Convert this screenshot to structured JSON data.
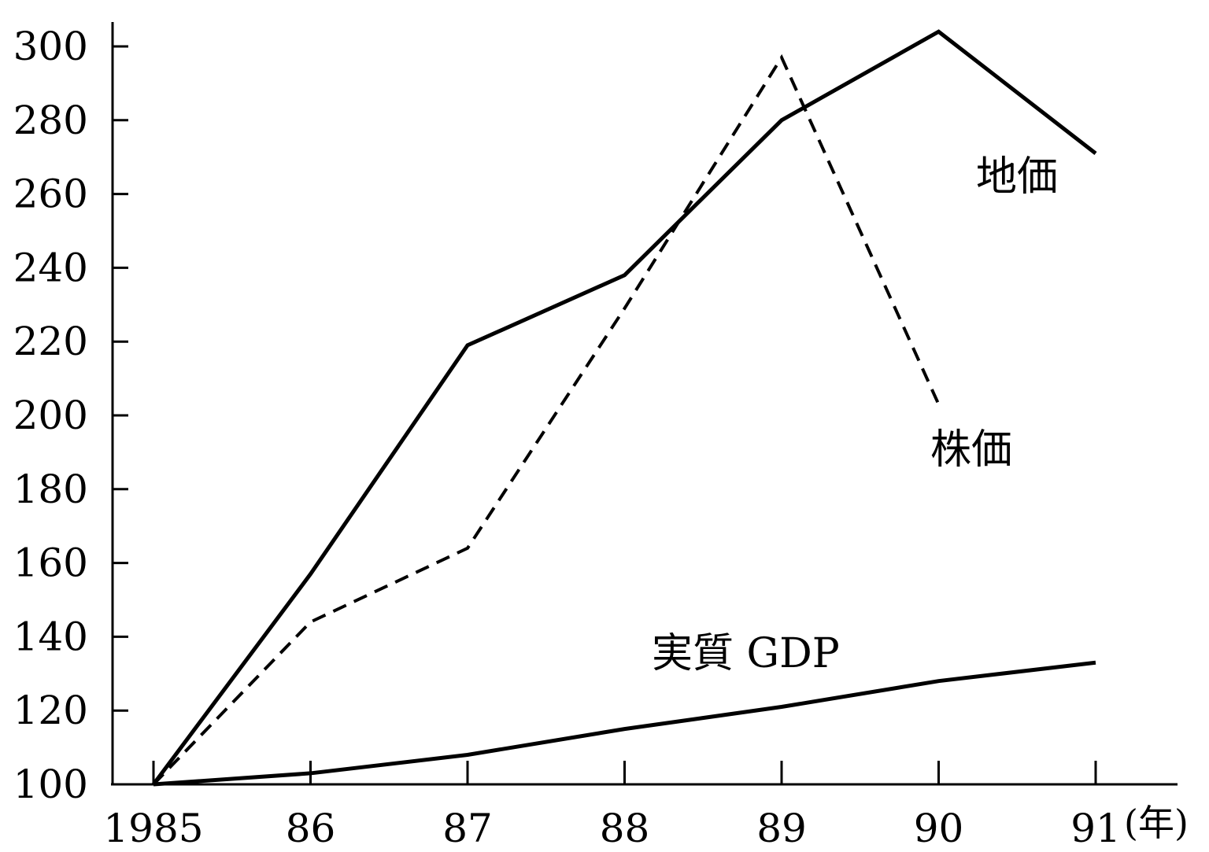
{
  "chart_data": {
    "type": "line",
    "title": "",
    "xlabel": "",
    "ylabel": "",
    "x_unit": "(年)",
    "x": [
      1985,
      1986,
      1987,
      1988,
      1989,
      1990,
      1991
    ],
    "x_tick_labels": [
      "1985",
      "86",
      "87",
      "88",
      "89",
      "90",
      "91"
    ],
    "y_ticks": [
      100,
      120,
      140,
      160,
      180,
      200,
      220,
      240,
      260,
      280,
      300
    ],
    "ylim": [
      100,
      307
    ],
    "grid": false,
    "legend": "inline labels",
    "series": [
      {
        "name": "地価",
        "style": "solid",
        "color": "#000000",
        "values": [
          100,
          157,
          219,
          238,
          280,
          304,
          271
        ]
      },
      {
        "name": "株価",
        "style": "dashed",
        "color": "#000000",
        "values": [
          100,
          144,
          164,
          229,
          297,
          203,
          null
        ]
      },
      {
        "name": "実質 GDP",
        "style": "solid",
        "color": "#000000",
        "values": [
          100,
          103,
          108,
          115,
          121,
          128,
          133
        ]
      }
    ]
  }
}
